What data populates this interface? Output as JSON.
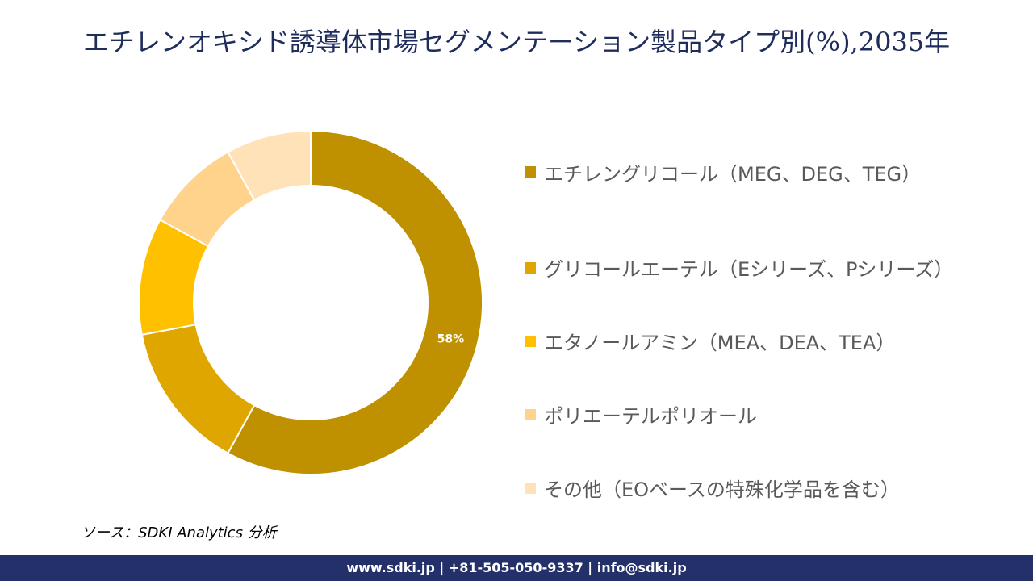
{
  "chart_data": {
    "type": "pie",
    "variant": "donut",
    "title": "エチレンオキシド誘導体市場セグメンテーション製品タイプ別(%),2035年",
    "categories": [
      "エチレングリコール（MEG、DEG、TEG）",
      "グリコールエーテル（Eシリーズ、Pシリーズ）",
      "エタノールアミン（MEA、DEA、TEA）",
      "ポリエーテルポリオール",
      "その他（EOベースの特殊化学品を含む）"
    ],
    "values": [
      58,
      14,
      11,
      9,
      8
    ],
    "data_labels": [
      "58%",
      "",
      "",
      "",
      ""
    ],
    "colors": [
      "#BF9000",
      "#E0A600",
      "#FFC000",
      "#FFD38C",
      "#FFE2B8"
    ],
    "legend_position": "right"
  },
  "source": "ソース：SDKI Analytics 分析",
  "footer": "www.sdki.jp | +81-505-050-9337 | info@sdki.jp"
}
